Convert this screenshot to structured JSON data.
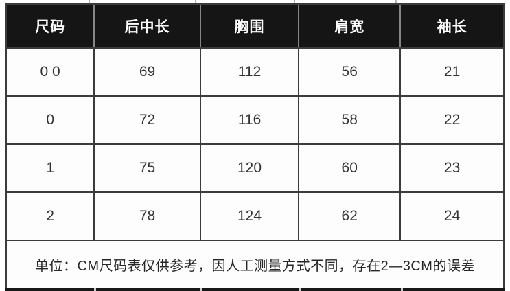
{
  "table": {
    "columns": [
      "尺码",
      "后中长",
      "胸围",
      "肩宽",
      "袖长"
    ],
    "rows": [
      [
        "0 0",
        "69",
        "112",
        "56",
        "21"
      ],
      [
        "0",
        "72",
        "116",
        "58",
        "22"
      ],
      [
        "1",
        "75",
        "120",
        "60",
        "23"
      ],
      [
        "2",
        "78",
        "124",
        "62",
        "24"
      ]
    ],
    "footnote": "单位：CM尺码表仅供参考，因人工测量方式不同，存在2—3CM的误差"
  },
  "colors": {
    "header_background": "#151515",
    "header_text": "#fdfdfd",
    "grid_border": "#3b3b3b",
    "header_divider": "#868686",
    "cell_background": "#fdfdfd",
    "cell_text": "#333333"
  }
}
